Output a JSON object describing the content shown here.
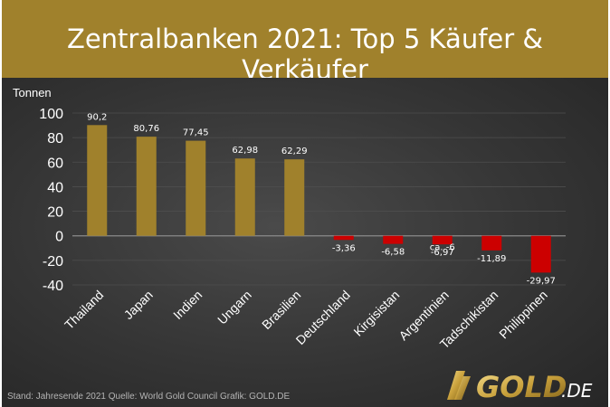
{
  "title": "Zentralbanken 2021: Top 5 Käufer & Verkäufer",
  "footer": {
    "note": "Stand: Jahresende 2021    Quelle: World Gold Council    Grafik: GOLD.DE"
  },
  "logo": {
    "text": "GOLD",
    "suffix": ".DE"
  },
  "colors": {
    "header": "#a0812c",
    "positive": "#a0812c",
    "negative": "#cc0000",
    "text": "#ffffff"
  },
  "chart_data": {
    "type": "bar",
    "ylabel": "Tonnen",
    "ylim": [
      -40,
      100
    ],
    "yticks": [
      100,
      80,
      60,
      40,
      20,
      0,
      -20,
      -40
    ],
    "grid": true,
    "categories": [
      "Thailand",
      "Japan",
      "Indien",
      "Ungarn",
      "Brasilien",
      "Deutschland",
      "Kirgisistan",
      "Argentinien",
      "Tadschikistan",
      "Philippinen"
    ],
    "values": [
      90.2,
      80.76,
      77.45,
      62.98,
      62.29,
      -3.36,
      -6.58,
      -6.97,
      -11.89,
      -29.97
    ],
    "value_labels": [
      "90,2",
      "80,76",
      "77,45",
      "62,98",
      "62,29",
      "-3,36",
      "-6,58",
      "-6,97",
      "-11,89",
      "-29,97"
    ],
    "annotations": [
      {
        "category": "Argentinien",
        "text": "ca. -6"
      }
    ]
  }
}
